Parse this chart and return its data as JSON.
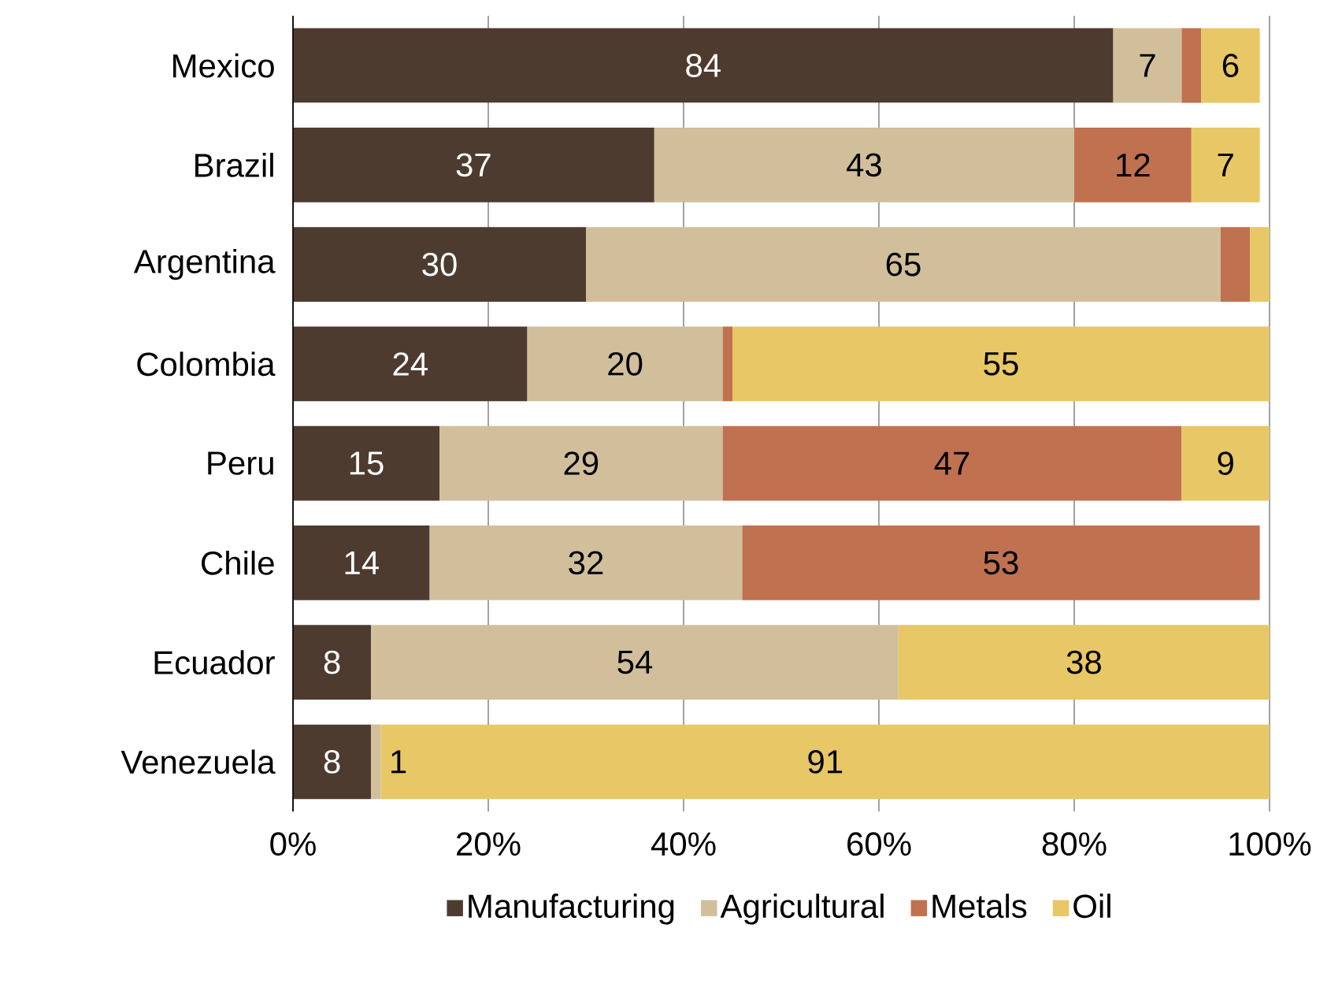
{
  "chart_data": {
    "type": "bar",
    "orientation": "horizontal",
    "stacked": true,
    "categories": [
      "Mexico",
      "Brazil",
      "Argentina",
      "Colombia",
      "Peru",
      "Chile",
      "Ecuador",
      "Venezuela"
    ],
    "series": [
      {
        "name": "Manufacturing",
        "color": "#4e3b30",
        "values": [
          84,
          37,
          30,
          24,
          15,
          14,
          8,
          8
        ],
        "value_labels": [
          "84",
          "37",
          "30",
          "24",
          "15",
          "14",
          "8",
          "8"
        ]
      },
      {
        "name": "Agricultural",
        "color": "#d1bf9c",
        "values": [
          7,
          43,
          65,
          20,
          29,
          32,
          54,
          1
        ],
        "value_labels": [
          "7",
          "43",
          "65",
          "20",
          "29",
          "32",
          "54",
          "1"
        ]
      },
      {
        "name": "Metals",
        "color": "#c0714f",
        "values": [
          2,
          12,
          3,
          1,
          47,
          53,
          null,
          null
        ],
        "value_labels": [
          null,
          "12",
          null,
          null,
          "47",
          "53",
          null,
          null
        ]
      },
      {
        "name": "Oil",
        "color": "#e8c766",
        "values": [
          6,
          7,
          2,
          55,
          9,
          null,
          38,
          91
        ],
        "value_labels": [
          "6",
          "7",
          null,
          "55",
          "9",
          null,
          "38",
          "91"
        ]
      }
    ],
    "xlim": [
      0,
      100
    ],
    "xticks": [
      {
        "value": 0,
        "label": "0%"
      },
      {
        "value": 20,
        "label": "20%"
      },
      {
        "value": 40,
        "label": "40%"
      },
      {
        "value": 60,
        "label": "60%"
      },
      {
        "value": 80,
        "label": "80%"
      },
      {
        "value": 100,
        "label": "100%"
      }
    ],
    "grid": "x",
    "legend": "bottom"
  }
}
